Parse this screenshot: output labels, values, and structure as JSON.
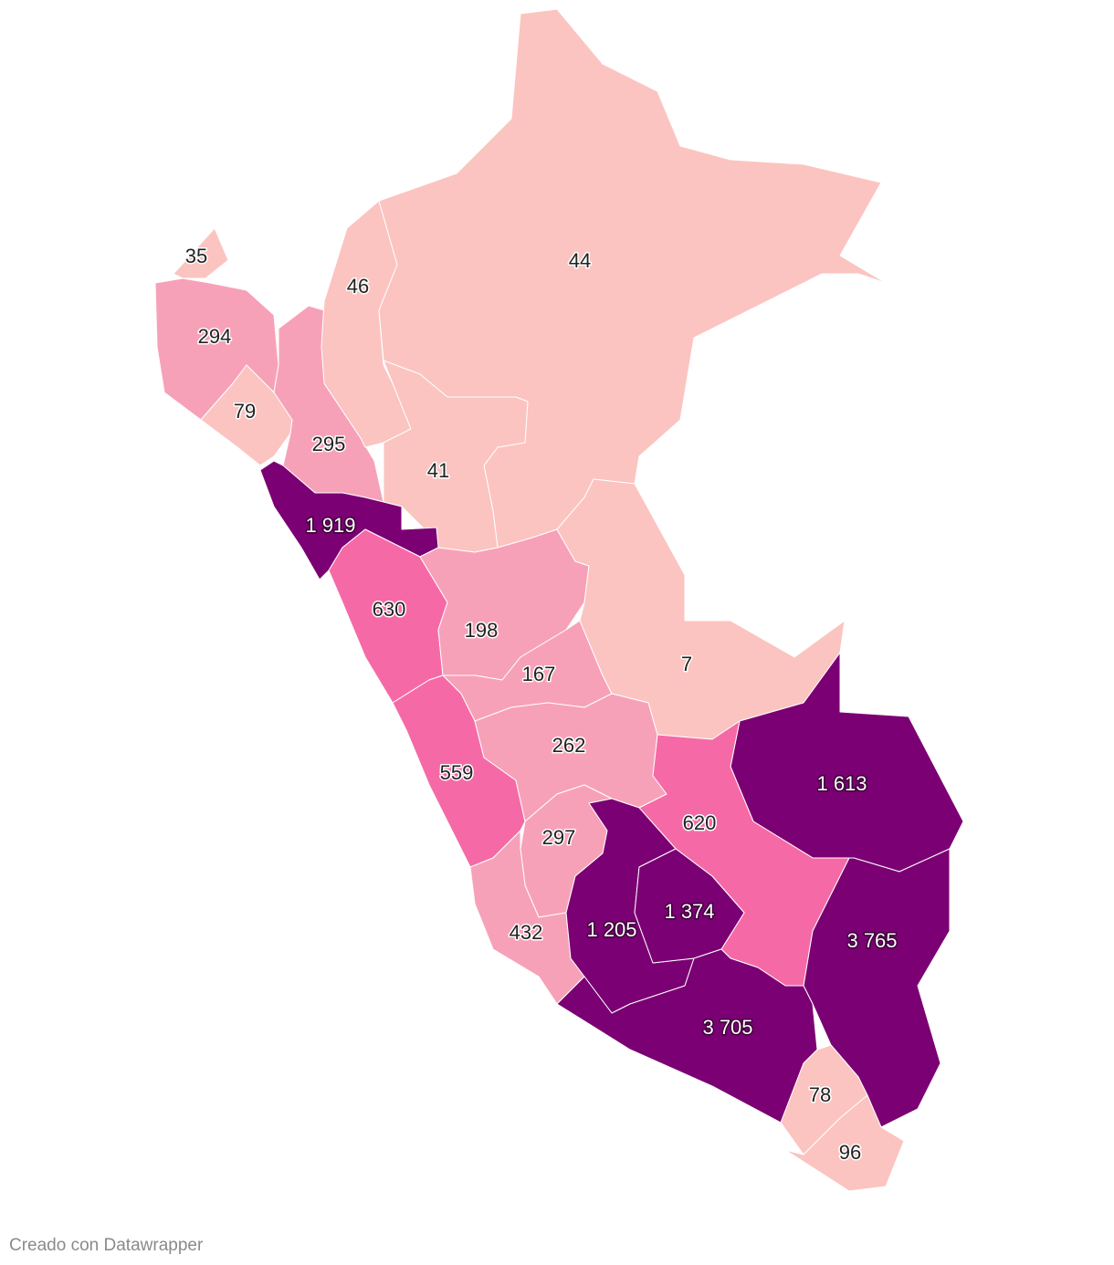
{
  "chart_data": {
    "type": "choropleth",
    "values": [
      35,
      294,
      79,
      295,
      46,
      44,
      41,
      1919,
      630,
      198,
      167,
      7,
      559,
      262,
      1613,
      620,
      297,
      432,
      1205,
      1374,
      3765,
      3705,
      78,
      96
    ],
    "value_labels": [
      "35",
      "294",
      "79",
      "295",
      "46",
      "44",
      "41",
      "1 919",
      "630",
      "198",
      "167",
      "7",
      "559",
      "262",
      "1 613",
      "620",
      "297",
      "432",
      "1 205",
      "1 374",
      "3 765",
      "3 705",
      "78",
      "96"
    ],
    "colors": [
      "#fbc4c0",
      "#f7a1b9",
      "#fbc4c0",
      "#f7a1b9",
      "#fbc4c0",
      "#fbc4c0",
      "#fbc4c0",
      "#7b0073",
      "#f56aa6",
      "#f7a1b9",
      "#f7a1b9",
      "#fbc4c0",
      "#f56aa6",
      "#f7a1b9",
      "#7b0073",
      "#f56aa6",
      "#f7a1b9",
      "#f7a1b9",
      "#7b0073",
      "#7b0073",
      "#7b0073",
      "#7b0073",
      "#fbc4c0",
      "#fbc4c0"
    ],
    "dark_colors": [
      "#7b0073"
    ],
    "credit": "Creado con Datawrapper"
  }
}
